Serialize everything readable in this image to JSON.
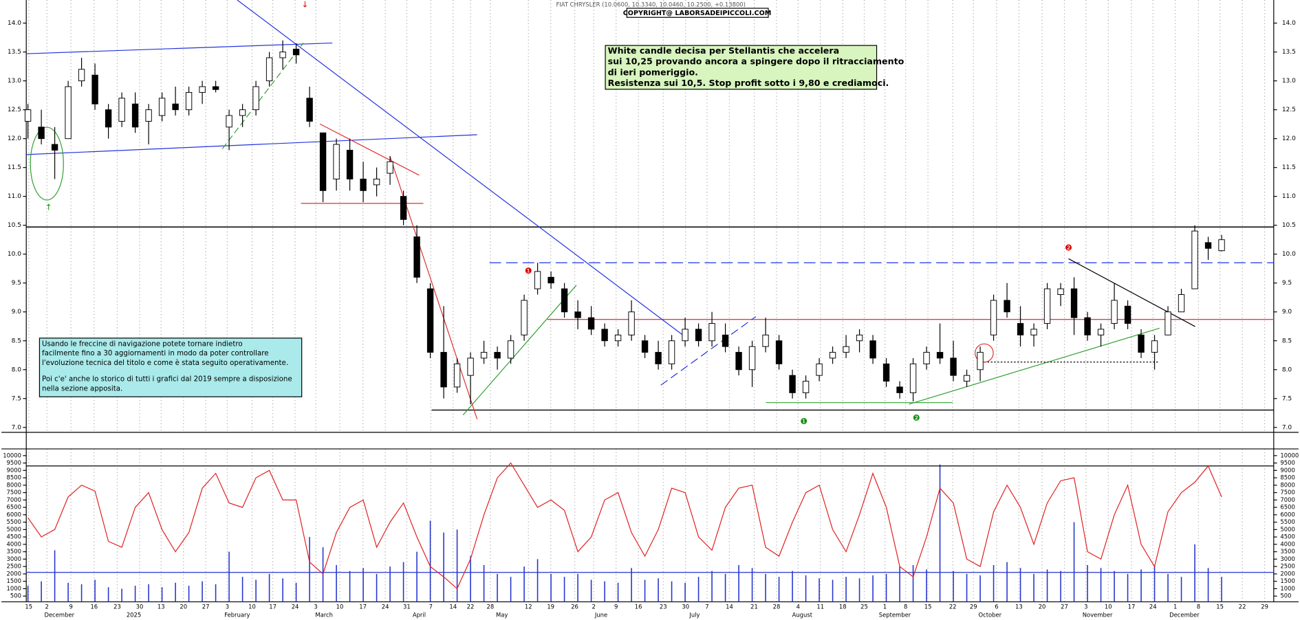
{
  "chart_data": {
    "type": "candlestick",
    "title": "FIAT CHRYSLER (10.0600, 10.3340, 10.0460, 10.2500, +0.13800)",
    "copyright": "COPYRIGHT@ LABORSADEIPICCOLI.COM",
    "comment": [
      "White candle decisa per Stellantis che accelera",
      "sui 10,25 provando ancora a spingere dopo il ritracciamento",
      "di ieri pomeriggio.",
      "Resistenza sui 10,5. Stop profit sotto i 9,80 e crediamoci."
    ],
    "note": [
      "Usando le freccine di navigazione potete tornare indietro",
      "facilmente fino a 30 aggiornamenti in modo da poter controllare",
      "l'evoluzione tecnica del titolo e come è stata seguito operativamente.",
      "Poi c'e' anche lo storico di tutti i grafici dal 2019 sempre a disposizione",
      "nella sezione apposita."
    ],
    "markers": [
      {
        "label": "❶",
        "color": "#e00000"
      },
      {
        "label": "❷",
        "color": "#e00000"
      },
      {
        "label": "❶",
        "color": "#109010"
      },
      {
        "label": "❷",
        "color": "#109010"
      }
    ],
    "up_color": "#ffffff",
    "down_color": "#000000",
    "candles": [
      [
        12.3,
        12.6,
        12.0,
        12.5
      ],
      [
        12.2,
        12.5,
        11.9,
        12.0
      ],
      [
        11.9,
        12.2,
        11.3,
        11.8
      ],
      [
        12.0,
        13.0,
        12.0,
        12.9
      ],
      [
        13.0,
        13.4,
        12.9,
        13.2
      ],
      [
        13.1,
        13.3,
        12.5,
        12.6
      ],
      [
        12.5,
        12.6,
        12.0,
        12.2
      ],
      [
        12.3,
        12.8,
        12.2,
        12.7
      ],
      [
        12.6,
        12.8,
        12.1,
        12.2
      ],
      [
        12.3,
        12.6,
        11.9,
        12.5
      ],
      [
        12.4,
        12.8,
        12.3,
        12.7
      ],
      [
        12.6,
        12.9,
        12.4,
        12.5
      ],
      [
        12.5,
        12.9,
        12.4,
        12.8
      ],
      [
        12.8,
        13.0,
        12.6,
        12.9
      ],
      [
        12.9,
        13.0,
        12.8,
        12.85
      ],
      [
        12.2,
        12.5,
        11.8,
        12.4
      ],
      [
        12.4,
        12.6,
        12.2,
        12.5
      ],
      [
        12.5,
        13.0,
        12.4,
        12.9
      ],
      [
        13.0,
        13.5,
        12.9,
        13.4
      ],
      [
        13.4,
        13.7,
        13.2,
        13.5
      ],
      [
        13.55,
        13.65,
        13.3,
        13.45
      ],
      [
        12.7,
        12.9,
        12.2,
        12.3
      ],
      [
        12.1,
        12.1,
        10.9,
        11.1
      ],
      [
        11.3,
        12.0,
        11.1,
        11.9
      ],
      [
        11.8,
        12.0,
        11.1,
        11.3
      ],
      [
        11.3,
        11.6,
        10.9,
        11.1
      ],
      [
        11.2,
        11.5,
        11.0,
        11.3
      ],
      [
        11.4,
        11.7,
        11.2,
        11.6
      ],
      [
        11.0,
        11.1,
        10.5,
        10.6
      ],
      [
        10.3,
        10.5,
        9.5,
        9.6
      ],
      [
        9.4,
        9.5,
        8.2,
        8.3
      ],
      [
        8.3,
        9.1,
        7.5,
        7.7
      ],
      [
        7.7,
        8.2,
        7.6,
        8.1
      ],
      [
        7.9,
        8.3,
        7.4,
        8.2
      ],
      [
        8.2,
        8.5,
        8.1,
        8.3
      ],
      [
        8.3,
        8.4,
        8.0,
        8.2
      ],
      [
        8.2,
        8.6,
        8.1,
        8.5
      ],
      [
        8.6,
        9.3,
        8.5,
        9.2
      ],
      [
        9.4,
        9.85,
        9.3,
        9.7
      ],
      [
        9.6,
        9.7,
        9.4,
        9.5
      ],
      [
        9.4,
        9.5,
        8.9,
        9.0
      ],
      [
        9.0,
        9.2,
        8.7,
        8.9
      ],
      [
        8.9,
        9.1,
        8.6,
        8.7
      ],
      [
        8.7,
        8.8,
        8.4,
        8.5
      ],
      [
        8.5,
        8.7,
        8.4,
        8.6
      ],
      [
        8.6,
        9.2,
        8.5,
        9.0
      ],
      [
        8.5,
        8.6,
        8.2,
        8.3
      ],
      [
        8.3,
        8.5,
        8.0,
        8.1
      ],
      [
        8.1,
        8.6,
        8.0,
        8.5
      ],
      [
        8.5,
        8.9,
        8.4,
        8.7
      ],
      [
        8.7,
        8.8,
        8.4,
        8.5
      ],
      [
        8.5,
        9.0,
        8.4,
        8.8
      ],
      [
        8.6,
        8.8,
        8.3,
        8.4
      ],
      [
        8.3,
        8.4,
        7.9,
        8.0
      ],
      [
        8.0,
        8.5,
        7.7,
        8.4
      ],
      [
        8.4,
        8.9,
        8.3,
        8.6
      ],
      [
        8.5,
        8.6,
        8.0,
        8.1
      ],
      [
        7.9,
        8.0,
        7.5,
        7.6
      ],
      [
        7.6,
        7.9,
        7.5,
        7.8
      ],
      [
        7.9,
        8.2,
        7.8,
        8.1
      ],
      [
        8.2,
        8.4,
        8.1,
        8.3
      ],
      [
        8.3,
        8.6,
        8.2,
        8.4
      ],
      [
        8.5,
        8.7,
        8.3,
        8.6
      ],
      [
        8.5,
        8.6,
        8.1,
        8.2
      ],
      [
        8.1,
        8.2,
        7.7,
        7.8
      ],
      [
        7.7,
        7.8,
        7.5,
        7.6
      ],
      [
        7.6,
        8.2,
        7.45,
        8.1
      ],
      [
        8.1,
        8.4,
        8.0,
        8.3
      ],
      [
        8.3,
        8.8,
        8.1,
        8.2
      ],
      [
        8.2,
        8.5,
        7.8,
        7.9
      ],
      [
        7.8,
        8.0,
        7.7,
        7.9
      ],
      [
        8.0,
        8.4,
        7.8,
        8.3
      ],
      [
        8.6,
        9.3,
        8.5,
        9.2
      ],
      [
        9.2,
        9.5,
        8.9,
        9.0
      ],
      [
        8.8,
        9.1,
        8.4,
        8.6
      ],
      [
        8.6,
        8.8,
        8.4,
        8.7
      ],
      [
        8.8,
        9.5,
        8.7,
        9.4
      ],
      [
        9.3,
        9.5,
        9.1,
        9.4
      ],
      [
        9.4,
        9.6,
        8.6,
        8.9
      ],
      [
        8.9,
        9.0,
        8.5,
        8.6
      ],
      [
        8.6,
        8.8,
        8.4,
        8.7
      ],
      [
        8.8,
        9.5,
        8.7,
        9.2
      ],
      [
        9.1,
        9.2,
        8.7,
        8.8
      ],
      [
        8.6,
        8.7,
        8.2,
        8.3
      ],
      [
        8.3,
        8.6,
        8.0,
        8.5
      ],
      [
        8.6,
        9.1,
        8.6,
        9.0
      ],
      [
        9.0,
        9.4,
        9.0,
        9.3
      ],
      [
        9.4,
        10.5,
        9.4,
        10.4
      ],
      [
        10.2,
        10.3,
        9.9,
        10.1
      ],
      [
        10.06,
        10.334,
        10.046,
        10.25
      ]
    ],
    "ylim": [
      6.9,
      14.4
    ],
    "yticks": [
      {
        "value": 7,
        "label": "7.0"
      },
      7.5,
      {
        "value": 8,
        "label": "8.0"
      },
      8.5,
      {
        "value": 9,
        "label": "9.0"
      },
      9.5,
      {
        "value": 10,
        "label": "10.0"
      },
      10.5,
      {
        "value": 11,
        "label": "11.0"
      },
      11.5,
      {
        "value": 12,
        "label": "12.0"
      },
      12.5,
      {
        "value": 13,
        "label": "13.0"
      },
      13.5,
      {
        "value": 14,
        "label": "14.0"
      }
    ],
    "levels": [
      {
        "value": 10.47,
        "color": "#000000",
        "style": "solid"
      },
      {
        "value": 7.3,
        "color": "#000000",
        "style": "solid"
      },
      {
        "value": 9.85,
        "color": "#3344ee",
        "style": "dashed"
      },
      {
        "value": 8.87,
        "color": "#e04040",
        "style": "solid"
      }
    ],
    "volume": {
      "values": [
        1200,
        1500,
        3600,
        1400,
        1300,
        1600,
        1100,
        1000,
        1200,
        1300,
        1100,
        1400,
        1200,
        1500,
        1300,
        3500,
        1800,
        1600,
        2000,
        1700,
        1400,
        4500,
        3800,
        2600,
        2200,
        2400,
        2000,
        2500,
        2800,
        3500,
        5600,
        4800,
        5000,
        3200,
        2600,
        2000,
        1800,
        2500,
        3000,
        2000,
        1800,
        2000,
        1600,
        1500,
        1400,
        2400,
        1600,
        1700,
        1500,
        1400,
        1800,
        2200,
        2000,
        2600,
        2400,
        2000,
        1800,
        2200,
        1900,
        1700,
        1600,
        1800,
        1700,
        1900,
        2000,
        2500,
        2600,
        2300,
        9400,
        2200,
        2000,
        1900,
        2600,
        2800,
        2400,
        2000,
        2300,
        2200,
        5500,
        2600,
        2400,
        2200,
        2000,
        2300,
        2600,
        2000,
        1800,
        4000,
        2400,
        1800
      ],
      "color": "#2233cc"
    },
    "oscillator": {
      "values": [
        5800,
        4500,
        5000,
        7200,
        8000,
        7600,
        4200,
        3800,
        6500,
        7500,
        5000,
        3500,
        4800,
        7800,
        8800,
        6800,
        6500,
        8500,
        9000,
        7000,
        7000,
        2800,
        2000,
        4800,
        6500,
        7000,
        3800,
        5500,
        6800,
        4500,
        2500,
        1800,
        1000,
        3000,
        6000,
        8500,
        9500,
        8000,
        6500,
        7000,
        6300,
        3500,
        4500,
        7000,
        7500,
        4800,
        3200,
        5000,
        7800,
        7500,
        4500,
        3600,
        6500,
        7800,
        8000,
        3800,
        3200,
        5500,
        7500,
        8000,
        5000,
        3500,
        6000,
        8800,
        6500,
        2500,
        1800,
        4500,
        7800,
        6800,
        3000,
        2500,
        6200,
        8000,
        6500,
        4000,
        6800,
        8300,
        8500,
        3500,
        3000,
        6000,
        8000,
        4000,
        2500,
        6200,
        7500,
        8200,
        9300,
        7200
      ],
      "color": "#e02020"
    },
    "y2lim": [
      0,
      10400
    ],
    "y2ticks": [
      500,
      1000,
      1500,
      2000,
      2500,
      3000,
      3500,
      4000,
      4500,
      5000,
      5500,
      6000,
      6500,
      7000,
      7500,
      8000,
      8500,
      9000,
      9500,
      10000
    ],
    "y2levels": [
      {
        "value": 9300,
        "color": "#000000"
      },
      {
        "value": 2100,
        "color": "#2233cc"
      }
    ],
    "x_day_labels": [
      "15",
      "2",
      "9",
      "16",
      "23",
      "30",
      "13",
      "20",
      "27",
      "3",
      "10",
      "17",
      "24",
      "3",
      "10",
      "17",
      "24",
      "31",
      "7",
      "14",
      "22",
      "28",
      "12",
      "19",
      "26",
      "2",
      "9",
      "16",
      "23",
      "30",
      "7",
      "14",
      "21",
      "28",
      "4",
      "11",
      "18",
      "25",
      "1",
      "8",
      "15",
      "22",
      "29",
      "6",
      "13",
      "20",
      "27",
      "3",
      "10",
      "17",
      "24",
      "1",
      "8",
      "15",
      "22",
      "29"
    ],
    "x_month_labels": [
      "December",
      "2025",
      "February",
      "March",
      "April",
      "May",
      "June",
      "July",
      "August",
      "September",
      "October",
      "November",
      "December"
    ],
    "grid": true
  }
}
